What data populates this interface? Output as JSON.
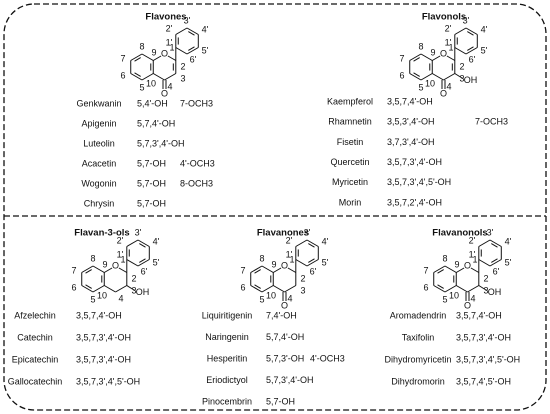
{
  "sections": [
    {
      "title": "Flavones",
      "ring_labels": [
        "8",
        "7",
        "6",
        "5",
        "9",
        "10",
        "O",
        "1",
        "2",
        "3",
        "4",
        "1'",
        "2'",
        "3'",
        "4'",
        "5'",
        "6'"
      ],
      "carbonyl": "O",
      "compounds": [
        {
          "name": "Genkwanin",
          "substituents": "5,4'-OH",
          "extra": "7-OCH3"
        },
        {
          "name": "Apigenin",
          "substituents": "5,7,4'-OH"
        },
        {
          "name": "Luteolin",
          "substituents": "5,7,3',4'-OH"
        },
        {
          "name": "Acacetin",
          "substituents": "5,7-OH",
          "extra": "4'-OCH3"
        },
        {
          "name": "Wogonin",
          "substituents": "5,7-OH",
          "extra": "8-OCH3"
        },
        {
          "name": "Chrysin",
          "substituents": "5,7-OH"
        }
      ]
    },
    {
      "title": "Flavonols",
      "ring_labels": [
        "8",
        "7",
        "6",
        "5",
        "9",
        "10",
        "O",
        "1",
        "2",
        "3",
        "4",
        "1'",
        "2'",
        "3'",
        "4'",
        "5'",
        "6'"
      ],
      "carbonyl": "O",
      "hydroxyl": "OH",
      "compounds": [
        {
          "name": "Kaempferol",
          "substituents": "3,5,7,4'-OH"
        },
        {
          "name": "Rhamnetin",
          "substituents": "3,5,3',4'-OH",
          "extra": "7-OCH3"
        },
        {
          "name": "Fisetin",
          "substituents": "3,7,3',4'-OH"
        },
        {
          "name": "Quercetin",
          "substituents": "3,5,7,3',4'-OH"
        },
        {
          "name": "Myricetin",
          "substituents": "3,5,7,3',4',5'-OH"
        },
        {
          "name": "Morin",
          "substituents": "3,5,7,2',4'-OH"
        }
      ]
    },
    {
      "title": "Flavan-3-ols",
      "ring_labels": [
        "8",
        "7",
        "6",
        "5",
        "9",
        "10",
        "O",
        "1",
        "2",
        "3",
        "4",
        "1'",
        "2'",
        "3'",
        "4'",
        "5'",
        "6'"
      ],
      "hydroxyl": "OH",
      "compounds": [
        {
          "name": "Afzelechin",
          "substituents": "3,5,7,4'-OH"
        },
        {
          "name": "Catechin",
          "substituents": "3,5,7,3',4'-OH"
        },
        {
          "name": "Epicatechin",
          "substituents": "3,5,7,3',4'-OH"
        },
        {
          "name": "Gallocatechin",
          "substituents": "3,5,7,3',4',5'-OH"
        }
      ]
    },
    {
      "title": "Flavanones",
      "ring_labels": [
        "8",
        "7",
        "6",
        "5",
        "9",
        "10",
        "O",
        "1",
        "2",
        "3",
        "4",
        "1'",
        "2'",
        "3'",
        "4'",
        "5'",
        "6'"
      ],
      "carbonyl": "O",
      "compounds": [
        {
          "name": "Liquiritigenin",
          "substituents": "7,4'-OH"
        },
        {
          "name": "Naringenin",
          "substituents": "5,7,4'-OH"
        },
        {
          "name": "Hesperitin",
          "substituents": "5,7,3'-OH",
          "extra": "4'-OCH3"
        },
        {
          "name": "Eriodictyol",
          "substituents": "5,7,3',4'-OH"
        },
        {
          "name": "Pinocembrin",
          "substituents": "5,7-OH"
        }
      ]
    },
    {
      "title": "Flavanonols",
      "ring_labels": [
        "8",
        "7",
        "6",
        "5",
        "9",
        "10",
        "O",
        "1",
        "2",
        "3",
        "4",
        "1'",
        "2'",
        "3'",
        "4'",
        "5'",
        "6'"
      ],
      "carbonyl": "O",
      "hydroxyl": "OH",
      "compounds": [
        {
          "name": "Aromadendrin",
          "substituents": "3,5,7,4'-OH"
        },
        {
          "name": "Taxifolin",
          "substituents": "3,5,7,3',4'-OH"
        },
        {
          "name": "Dihydromyricetin",
          "substituents": "3,5,7,3',4',5'-OH"
        },
        {
          "name": "Dihydromorin",
          "substituents": "3,5,7,4',5'-OH"
        }
      ]
    }
  ]
}
